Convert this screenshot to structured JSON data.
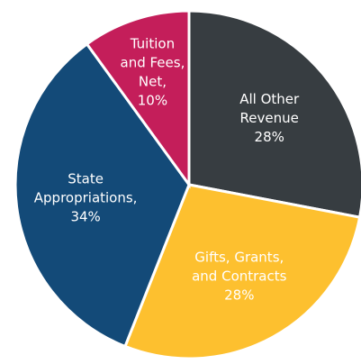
{
  "chart_data": {
    "type": "pie",
    "categories": [
      [
        "All Other",
        "Revenue"
      ],
      [
        "Gifts, Grants,",
        "and Contracts"
      ],
      [
        "State",
        "Appropriations,"
      ],
      [
        "Tuition",
        "and Fees,",
        "Net,"
      ]
    ],
    "values": [
      28,
      28,
      34,
      10
    ],
    "value_labels": [
      "28%",
      "28%",
      "34%",
      "10%"
    ],
    "colors": [
      "#373d41",
      "#fdc02f",
      "#134a78",
      "#c41e5a"
    ]
  }
}
